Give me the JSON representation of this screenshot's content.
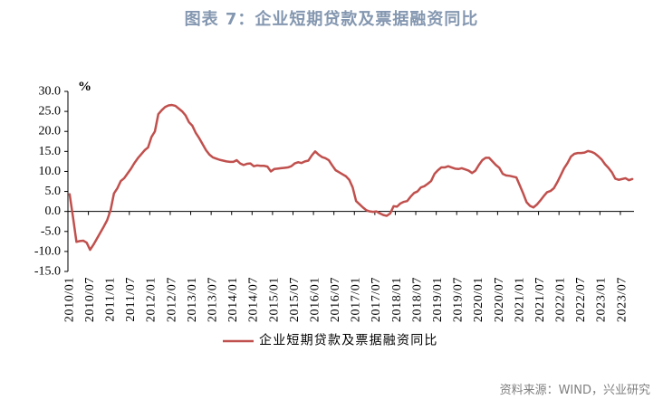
{
  "colors": {
    "title": "#8497B0",
    "source": "#7F7F7F"
  },
  "source": "资料来源：WIND，兴业研究",
  "chart_data": {
    "type": "line",
    "title": "图表 7：企业短期贷款及票据融资同比",
    "y_unit": "%",
    "ylim": [
      -15,
      30
    ],
    "y_tick_labels": [
      "30.0",
      "25.0",
      "20.0",
      "15.0",
      "10.0",
      "5.0",
      "0.0",
      "-5.0",
      "-10.0",
      "-15.0"
    ],
    "x_tick_labels": [
      "2010/01",
      "2010/07",
      "2011/01",
      "2011/07",
      "2012/01",
      "2012/07",
      "2013/01",
      "2013/07",
      "2014/01",
      "2014/07",
      "2015/01",
      "2015/07",
      "2016/01",
      "2016/07",
      "2017/01",
      "2017/07",
      "2018/01",
      "2018/07",
      "2019/01",
      "2019/07",
      "2020/01",
      "2020/07",
      "2021/01",
      "2021/07",
      "2022/01",
      "2022/07",
      "2023/01",
      "2023/07"
    ],
    "grid": false,
    "legend": "bottom",
    "x": [
      "2010/01",
      "2010/02",
      "2010/03",
      "2010/04",
      "2010/05",
      "2010/06",
      "2010/07",
      "2010/08",
      "2010/09",
      "2010/10",
      "2010/11",
      "2010/12",
      "2011/01",
      "2011/02",
      "2011/03",
      "2011/04",
      "2011/05",
      "2011/06",
      "2011/07",
      "2011/08",
      "2011/09",
      "2011/10",
      "2011/11",
      "2011/12",
      "2012/01",
      "2012/02",
      "2012/03",
      "2012/04",
      "2012/05",
      "2012/06",
      "2012/07",
      "2012/08",
      "2012/09",
      "2012/10",
      "2012/11",
      "2012/12",
      "2013/01",
      "2013/02",
      "2013/03",
      "2013/04",
      "2013/05",
      "2013/06",
      "2013/07",
      "2013/08",
      "2013/09",
      "2013/10",
      "2013/11",
      "2013/12",
      "2014/01",
      "2014/02",
      "2014/03",
      "2014/04",
      "2014/05",
      "2014/06",
      "2014/07",
      "2014/08",
      "2014/09",
      "2014/10",
      "2014/11",
      "2014/12",
      "2015/01",
      "2015/02",
      "2015/03",
      "2015/04",
      "2015/05",
      "2015/06",
      "2015/07",
      "2015/08",
      "2015/09",
      "2015/10",
      "2015/11",
      "2015/12",
      "2016/01",
      "2016/02",
      "2016/03",
      "2016/04",
      "2016/05",
      "2016/06",
      "2016/07",
      "2016/08",
      "2016/09",
      "2016/10",
      "2016/11",
      "2016/12",
      "2017/01",
      "2017/02",
      "2017/03",
      "2017/04",
      "2017/05",
      "2017/06",
      "2017/07",
      "2017/08",
      "2017/09",
      "2017/10",
      "2017/11",
      "2017/12",
      "2018/01",
      "2018/02",
      "2018/03",
      "2018/04",
      "2018/05",
      "2018/06",
      "2018/07",
      "2018/08",
      "2018/09",
      "2018/10",
      "2018/11",
      "2018/12",
      "2019/01",
      "2019/02",
      "2019/03",
      "2019/04",
      "2019/05",
      "2019/06",
      "2019/07",
      "2019/08",
      "2019/09",
      "2019/10",
      "2019/11",
      "2019/12",
      "2020/01",
      "2020/02",
      "2020/03",
      "2020/04",
      "2020/05",
      "2020/06",
      "2020/07",
      "2020/08",
      "2020/09",
      "2020/10",
      "2020/11",
      "2020/12",
      "2021/01",
      "2021/02",
      "2021/03",
      "2021/04",
      "2021/05",
      "2021/06",
      "2021/07",
      "2021/08",
      "2021/09",
      "2021/10",
      "2021/11",
      "2021/12",
      "2022/01",
      "2022/02",
      "2022/03",
      "2022/04",
      "2022/05",
      "2022/06",
      "2022/07",
      "2022/08",
      "2022/09",
      "2022/10",
      "2022/11",
      "2022/12",
      "2023/01",
      "2023/02",
      "2023/03",
      "2023/04",
      "2023/05",
      "2023/06",
      "2023/07",
      "2023/08",
      "2023/09",
      "2023/10"
    ],
    "series": [
      {
        "name": "企业短期贷款及票据融资同比",
        "color": "#C0504D",
        "values": [
          4.3,
          -1.5,
          -7.6,
          -7.4,
          -7.3,
          -7.8,
          -9.6,
          -8.3,
          -6.8,
          -5.3,
          -3.8,
          -2.2,
          0.3,
          4.5,
          5.8,
          7.6,
          8.3,
          9.5,
          10.7,
          12.1,
          13.3,
          14.3,
          15.3,
          16.0,
          18.6,
          20.0,
          24.3,
          25.3,
          26.1,
          26.5,
          26.6,
          26.4,
          25.7,
          25.0,
          24.0,
          22.3,
          21.4,
          19.6,
          18.3,
          16.8,
          15.3,
          14.2,
          13.5,
          13.2,
          12.9,
          12.7,
          12.5,
          12.4,
          12.4,
          12.8,
          12.0,
          11.6,
          11.9,
          12.0,
          11.3,
          11.5,
          11.4,
          11.4,
          11.2,
          10.0,
          10.6,
          10.7,
          10.8,
          10.9,
          11.0,
          11.3,
          12.0,
          12.3,
          12.1,
          12.5,
          12.7,
          14.0,
          15.0,
          14.2,
          13.6,
          13.3,
          12.8,
          11.5,
          10.3,
          9.8,
          9.3,
          8.8,
          7.9,
          6.0,
          2.6,
          1.8,
          1.0,
          0.3,
          0.0,
          -0.1,
          0.0,
          -0.5,
          -0.9,
          -1.1,
          -0.5,
          1.3,
          1.2,
          2.0,
          2.4,
          2.6,
          3.7,
          4.6,
          5.0,
          6.0,
          6.3,
          6.9,
          7.6,
          9.4,
          10.3,
          11.0,
          11.0,
          11.3,
          11.0,
          10.7,
          10.6,
          10.8,
          10.5,
          10.2,
          9.6,
          10.2,
          11.6,
          12.8,
          13.4,
          13.4,
          12.5,
          11.6,
          10.9,
          9.4,
          9.0,
          8.9,
          8.7,
          8.5,
          6.5,
          4.5,
          2.3,
          1.4,
          1.0,
          1.7,
          2.7,
          3.8,
          4.8,
          5.1,
          5.8,
          7.3,
          9.0,
          10.8,
          12.1,
          13.7,
          14.4,
          14.6,
          14.6,
          14.7,
          15.1,
          14.9,
          14.5,
          13.8,
          13.0,
          11.8,
          10.9,
          9.8,
          8.2,
          7.9,
          8.1,
          8.3,
          7.8,
          8.1
        ]
      }
    ]
  }
}
